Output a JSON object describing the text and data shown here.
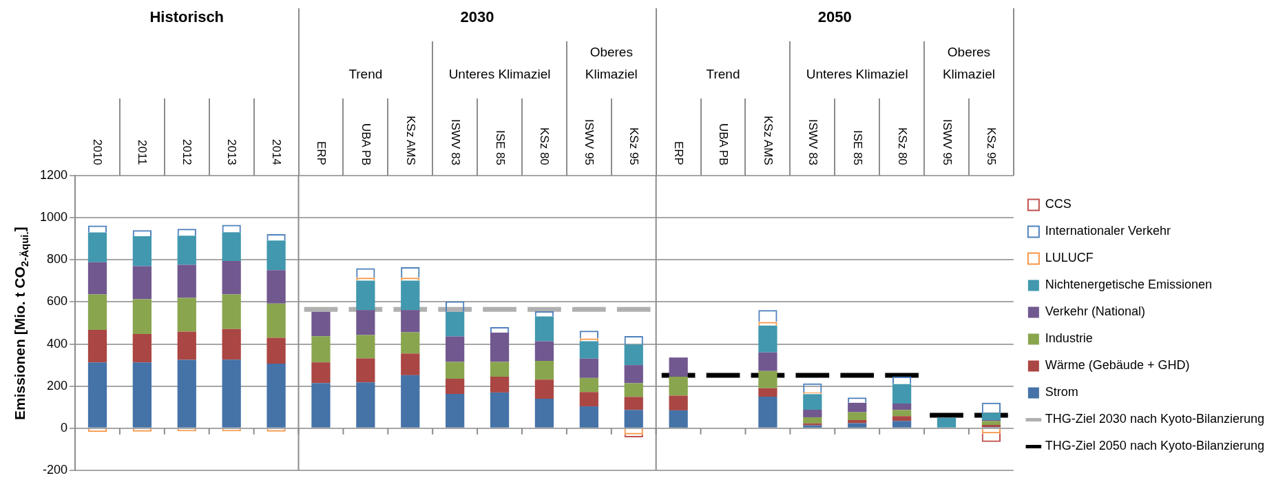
{
  "chart_data": {
    "type": "bar",
    "stacked": true,
    "ylabel": "Emissionen [Mio. t CO$_{2-Äqui.}$]",
    "categories": [
      "2010",
      "2011",
      "2012",
      "2013",
      "2014",
      "ERP",
      "UBA PB",
      "KSz AMS",
      "ISWV 83",
      "ISE 85",
      "KSz 80",
      "ISWV 95",
      "KSz 95",
      "ERP",
      "UBA PB",
      "KSz AMS",
      "ISWV 83",
      "ISE 85",
      "KSz 80",
      "ISWV 95",
      "KSz 95"
    ],
    "annotations": [
      "Historisch",
      "2030",
      "Trend",
      "Unteres Klimaziel",
      "Oberes Klimaziel",
      "2050",
      "Trend",
      "Unteres Klimaziel",
      "Oberes Klimaziel"
    ],
    "series": [
      {
        "name": "Strom",
        "color": "#4572a7",
        "values": [
          313,
          313,
          325,
          326,
          307,
          215,
          218,
          252,
          163,
          170,
          140,
          104,
          87,
          85,
          null,
          150,
          14,
          24,
          35,
          null,
          5
        ]
      },
      {
        "name": "Wärme (Gebäude + GHD)",
        "color": "#aa4643",
        "values": [
          154,
          135,
          134,
          145,
          123,
          98,
          114,
          103,
          72,
          75,
          91,
          68,
          62,
          70,
          null,
          40,
          9,
          15,
          23,
          null,
          11
        ]
      },
      {
        "name": "Industrie",
        "color": "#89a54e",
        "values": [
          169,
          165,
          160,
          165,
          162,
          124,
          111,
          101,
          80,
          70,
          89,
          67,
          65,
          90,
          null,
          82,
          29,
          37,
          29,
          null,
          19
        ]
      },
      {
        "name": "Verkehr (National)",
        "color": "#71588f",
        "values": [
          153,
          157,
          157,
          158,
          159,
          116,
          118,
          105,
          121,
          139,
          93,
          92,
          86,
          91,
          null,
          88,
          36,
          45,
          30,
          null,
          4
        ]
      },
      {
        "name": "Nichtenergetische Emissionen",
        "color": "#4198af",
        "values": [
          141,
          142,
          139,
          137,
          141,
          null,
          140,
          140,
          117,
          null,
          118,
          82,
          98,
          null,
          null,
          128,
          74,
          null,
          93,
          50,
          34
        ]
      },
      {
        "name": "LULUCF",
        "color": "#f79646",
        "values": [
          -18,
          -16,
          -14,
          -14,
          -16,
          null,
          14,
          14,
          null,
          null,
          null,
          13,
          -29,
          null,
          null,
          17,
          8,
          null,
          null,
          null,
          -24
        ]
      },
      {
        "name": "Internationaler Verkehr",
        "color": "#4f81bd",
        "values": [
          33,
          29,
          32,
          35,
          30,
          null,
          45,
          50,
          50,
          26,
          25,
          37,
          40,
          null,
          null,
          56,
          43,
          25,
          35,
          null,
          48
        ]
      },
      {
        "name": "CCS",
        "color": "#c0504d",
        "values": [
          null,
          null,
          null,
          null,
          null,
          null,
          null,
          null,
          null,
          null,
          null,
          null,
          -14,
          null,
          null,
          null,
          null,
          null,
          null,
          null,
          -41
        ]
      }
    ],
    "ref_lines": [
      {
        "axis": "y",
        "value": 565,
        "label": "THG-Ziel 2030 nach Kyoto-Bilanzierung",
        "color": "#b0b0b0",
        "line_style": "dashed"
      },
      {
        "axis": "y",
        "value": 251,
        "label": "THG-Ziel 2050 nach Kyoto-Bilanzierung",
        "color": "#000000",
        "line_style": "dashed"
      },
      {
        "axis": "y",
        "value": 62,
        "color": "#000000",
        "line_style": "dashed"
      }
    ],
    "ylim": [
      -200,
      1200
    ],
    "yticks": [
      -200,
      0,
      200,
      400,
      600,
      800,
      1000,
      1200
    ],
    "grid": "y",
    "legend": "right"
  }
}
